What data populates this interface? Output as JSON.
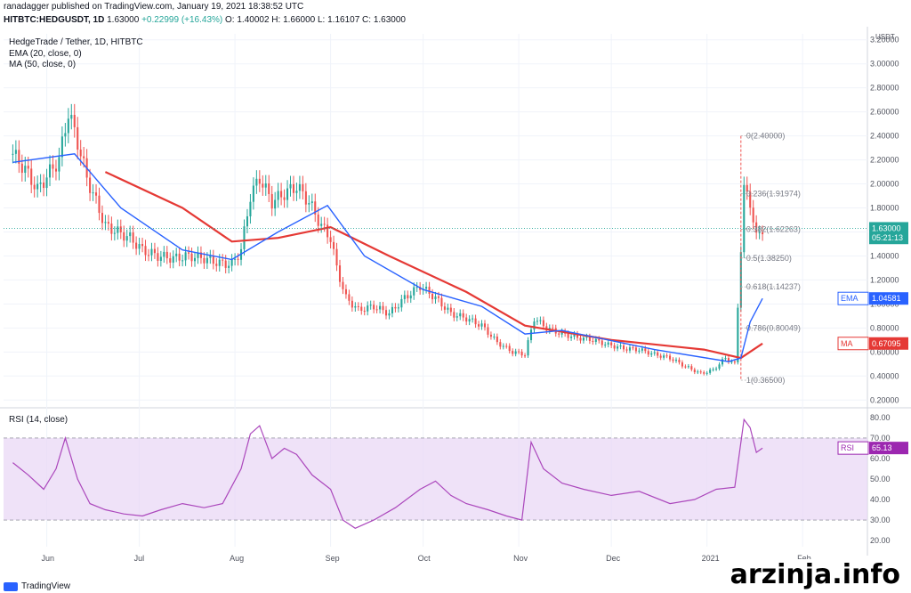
{
  "header": {
    "publisher": "ranadagger published on TradingView.com, January 19, 2021 18:38:52 UTC",
    "symbol": "HITBTC:HEDGUSDT, 1D",
    "last": "1.63000",
    "change": "+0.22999 (+16.43%)",
    "ohlc": "O: 1.40002  H: 1.66000  L: 1.16107  C: 1.63000"
  },
  "footer": {
    "brand": "TradingView",
    "watermark": "arzinja.info"
  },
  "colors": {
    "up": "#26a69a",
    "down": "#ef5350",
    "ema": "#2962ff",
    "ma": "#e53935",
    "rsi": "#ab47bc",
    "rsi_band": "#e8d5f5"
  },
  "chart_data": [
    {
      "type": "candlestick",
      "title": "HedgeTrade / Tether, 1D, HITBTC",
      "indicators": [
        "EMA (20, close, 0)",
        "MA (50, close, 0)"
      ],
      "currency": "USDT",
      "x_labels": [
        "Jun",
        "Jul",
        "Aug",
        "Sep",
        "Oct",
        "Nov",
        "Dec",
        "2021",
        "Feb"
      ],
      "y_ticks": [
        "0.20000",
        "0.40000",
        "0.60000",
        "0.80000",
        "1.00000",
        "1.20000",
        "1.40000",
        "1.60000",
        "1.80000",
        "2.00000",
        "2.20000",
        "2.40000",
        "2.60000",
        "2.80000",
        "3.00000",
        "3.20000"
      ],
      "ylim": [
        0.15,
        3.25
      ],
      "close_series": [
        [
          "2020-05-21",
          2.25
        ],
        [
          "2020-05-25",
          2.12
        ],
        [
          "2020-05-29",
          1.95
        ],
        [
          "2020-06-02",
          2.1
        ],
        [
          "2020-06-05",
          2.2
        ],
        [
          "2020-06-08",
          2.6
        ],
        [
          "2020-06-11",
          2.35
        ],
        [
          "2020-06-14",
          2.05
        ],
        [
          "2020-06-17",
          1.85
        ],
        [
          "2020-06-20",
          1.65
        ],
        [
          "2020-06-24",
          1.6
        ],
        [
          "2020-06-28",
          1.55
        ],
        [
          "2020-07-02",
          1.45
        ],
        [
          "2020-07-07",
          1.4
        ],
        [
          "2020-07-12",
          1.38
        ],
        [
          "2020-07-17",
          1.4
        ],
        [
          "2020-07-22",
          1.38
        ],
        [
          "2020-07-27",
          1.34
        ],
        [
          "2020-07-31",
          1.33
        ],
        [
          "2020-08-03",
          1.45
        ],
        [
          "2020-08-06",
          1.9
        ],
        [
          "2020-08-09",
          2.05
        ],
        [
          "2020-08-13",
          1.85
        ],
        [
          "2020-08-17",
          1.92
        ],
        [
          "2020-08-21",
          1.98
        ],
        [
          "2020-08-25",
          1.85
        ],
        [
          "2020-08-29",
          1.65
        ],
        [
          "2020-09-01",
          1.55
        ],
        [
          "2020-09-03",
          1.3
        ],
        [
          "2020-09-06",
          1.05
        ],
        [
          "2020-09-10",
          0.95
        ],
        [
          "2020-09-15",
          0.98
        ],
        [
          "2020-09-20",
          0.92
        ],
        [
          "2020-09-25",
          1.05
        ],
        [
          "2020-09-30",
          1.15
        ],
        [
          "2020-10-05",
          1.05
        ],
        [
          "2020-10-10",
          0.92
        ],
        [
          "2020-10-15",
          0.88
        ],
        [
          "2020-10-20",
          0.82
        ],
        [
          "2020-10-25",
          0.68
        ],
        [
          "2020-10-30",
          0.6
        ],
        [
          "2020-11-03",
          0.58
        ],
        [
          "2020-11-06",
          0.88
        ],
        [
          "2020-11-10",
          0.8
        ],
        [
          "2020-11-15",
          0.75
        ],
        [
          "2020-11-20",
          0.72
        ],
        [
          "2020-11-25",
          0.7
        ],
        [
          "2020-11-30",
          0.66
        ],
        [
          "2020-12-05",
          0.63
        ],
        [
          "2020-12-10",
          0.62
        ],
        [
          "2020-12-15",
          0.58
        ],
        [
          "2020-12-20",
          0.55
        ],
        [
          "2020-12-25",
          0.48
        ],
        [
          "2020-12-30",
          0.42
        ],
        [
          "2021-01-03",
          0.45
        ],
        [
          "2021-01-07",
          0.55
        ],
        [
          "2021-01-10",
          0.5
        ],
        [
          "2021-01-13",
          1.95
        ],
        [
          "2021-01-15",
          1.85
        ],
        [
          "2021-01-17",
          1.55
        ],
        [
          "2021-01-19",
          1.63
        ]
      ],
      "ema": [
        [
          "2020-05-21",
          2.18
        ],
        [
          "2020-06-10",
          2.25
        ],
        [
          "2020-06-25",
          1.8
        ],
        [
          "2020-07-15",
          1.45
        ],
        [
          "2020-07-31",
          1.37
        ],
        [
          "2020-08-15",
          1.6
        ],
        [
          "2020-08-31",
          1.82
        ],
        [
          "2020-09-12",
          1.4
        ],
        [
          "2020-10-01",
          1.12
        ],
        [
          "2020-10-20",
          0.98
        ],
        [
          "2020-11-03",
          0.75
        ],
        [
          "2020-11-15",
          0.78
        ],
        [
          "2020-12-15",
          0.62
        ],
        [
          "2021-01-08",
          0.52
        ],
        [
          "2021-01-12",
          0.55
        ],
        [
          "2021-01-15",
          0.85
        ],
        [
          "2021-01-19",
          1.04581
        ]
      ],
      "ma": [
        [
          "2020-06-20",
          2.1
        ],
        [
          "2020-07-15",
          1.8
        ],
        [
          "2020-07-31",
          1.52
        ],
        [
          "2020-08-15",
          1.55
        ],
        [
          "2020-09-01",
          1.64
        ],
        [
          "2020-09-20",
          1.4
        ],
        [
          "2020-10-15",
          1.1
        ],
        [
          "2020-11-03",
          0.82
        ],
        [
          "2020-12-01",
          0.7
        ],
        [
          "2020-12-31",
          0.62
        ],
        [
          "2021-01-12",
          0.55
        ],
        [
          "2021-01-19",
          0.67095
        ]
      ],
      "fibonacci": [
        {
          "label": "0(2.40000)",
          "value": 2.4
        },
        {
          "label": "0.236(1.91974)",
          "value": 1.91974
        },
        {
          "label": "0.382(1.62263)",
          "value": 1.62263
        },
        {
          "label": "0.5(1.38250)",
          "value": 1.3825
        },
        {
          "label": "0.618(1.14237)",
          "value": 1.14237
        },
        {
          "label": "0.786(0.80049)",
          "value": 0.80049
        },
        {
          "label": "1(0.36500)",
          "value": 0.365
        }
      ],
      "badges": [
        {
          "text": "1.63000",
          "value": 1.63,
          "color": "#26a69a"
        },
        {
          "text": "05:21:13",
          "value": 1.55,
          "color": "#26a69a"
        },
        {
          "text": "EMA",
          "text2": "1.04581",
          "value": 1.04581,
          "color": "#2962ff"
        },
        {
          "text": "MA",
          "text2": "0.67095",
          "value": 0.67095,
          "color": "#e53935"
        }
      ]
    },
    {
      "type": "line",
      "title": "RSI (14, close)",
      "y_ticks": [
        "20.00",
        "30.00",
        "40.00",
        "50.00",
        "60.00",
        "70.00",
        "80.00"
      ],
      "band": [
        30,
        70
      ],
      "ylim": [
        17,
        83
      ],
      "values": [
        [
          "2020-05-21",
          58
        ],
        [
          "2020-05-26",
          52
        ],
        [
          "2020-05-31",
          45
        ],
        [
          "2020-06-04",
          55
        ],
        [
          "2020-06-07",
          70
        ],
        [
          "2020-06-11",
          50
        ],
        [
          "2020-06-15",
          38
        ],
        [
          "2020-06-20",
          35
        ],
        [
          "2020-06-26",
          33
        ],
        [
          "2020-07-02",
          32
        ],
        [
          "2020-07-08",
          35
        ],
        [
          "2020-07-15",
          38
        ],
        [
          "2020-07-22",
          36
        ],
        [
          "2020-07-28",
          38
        ],
        [
          "2020-08-03",
          55
        ],
        [
          "2020-08-06",
          72
        ],
        [
          "2020-08-09",
          76
        ],
        [
          "2020-08-13",
          60
        ],
        [
          "2020-08-17",
          65
        ],
        [
          "2020-08-21",
          62
        ],
        [
          "2020-08-26",
          52
        ],
        [
          "2020-09-01",
          45
        ],
        [
          "2020-09-05",
          30
        ],
        [
          "2020-09-09",
          26
        ],
        [
          "2020-09-15",
          30
        ],
        [
          "2020-09-22",
          36
        ],
        [
          "2020-09-30",
          45
        ],
        [
          "2020-10-05",
          49
        ],
        [
          "2020-10-10",
          42
        ],
        [
          "2020-10-15",
          38
        ],
        [
          "2020-10-22",
          35
        ],
        [
          "2020-10-28",
          32
        ],
        [
          "2020-11-02",
          30
        ],
        [
          "2020-11-05",
          68
        ],
        [
          "2020-11-09",
          55
        ],
        [
          "2020-11-15",
          48
        ],
        [
          "2020-11-22",
          45
        ],
        [
          "2020-12-01",
          42
        ],
        [
          "2020-12-10",
          44
        ],
        [
          "2020-12-20",
          38
        ],
        [
          "2020-12-28",
          40
        ],
        [
          "2021-01-04",
          45
        ],
        [
          "2021-01-10",
          46
        ],
        [
          "2021-01-13",
          79
        ],
        [
          "2021-01-15",
          75
        ],
        [
          "2021-01-17",
          63
        ],
        [
          "2021-01-19",
          65.13
        ]
      ],
      "badge": {
        "text": "RSI",
        "text2": "65.13",
        "value": 65.13,
        "color": "#9c27b0"
      }
    }
  ]
}
